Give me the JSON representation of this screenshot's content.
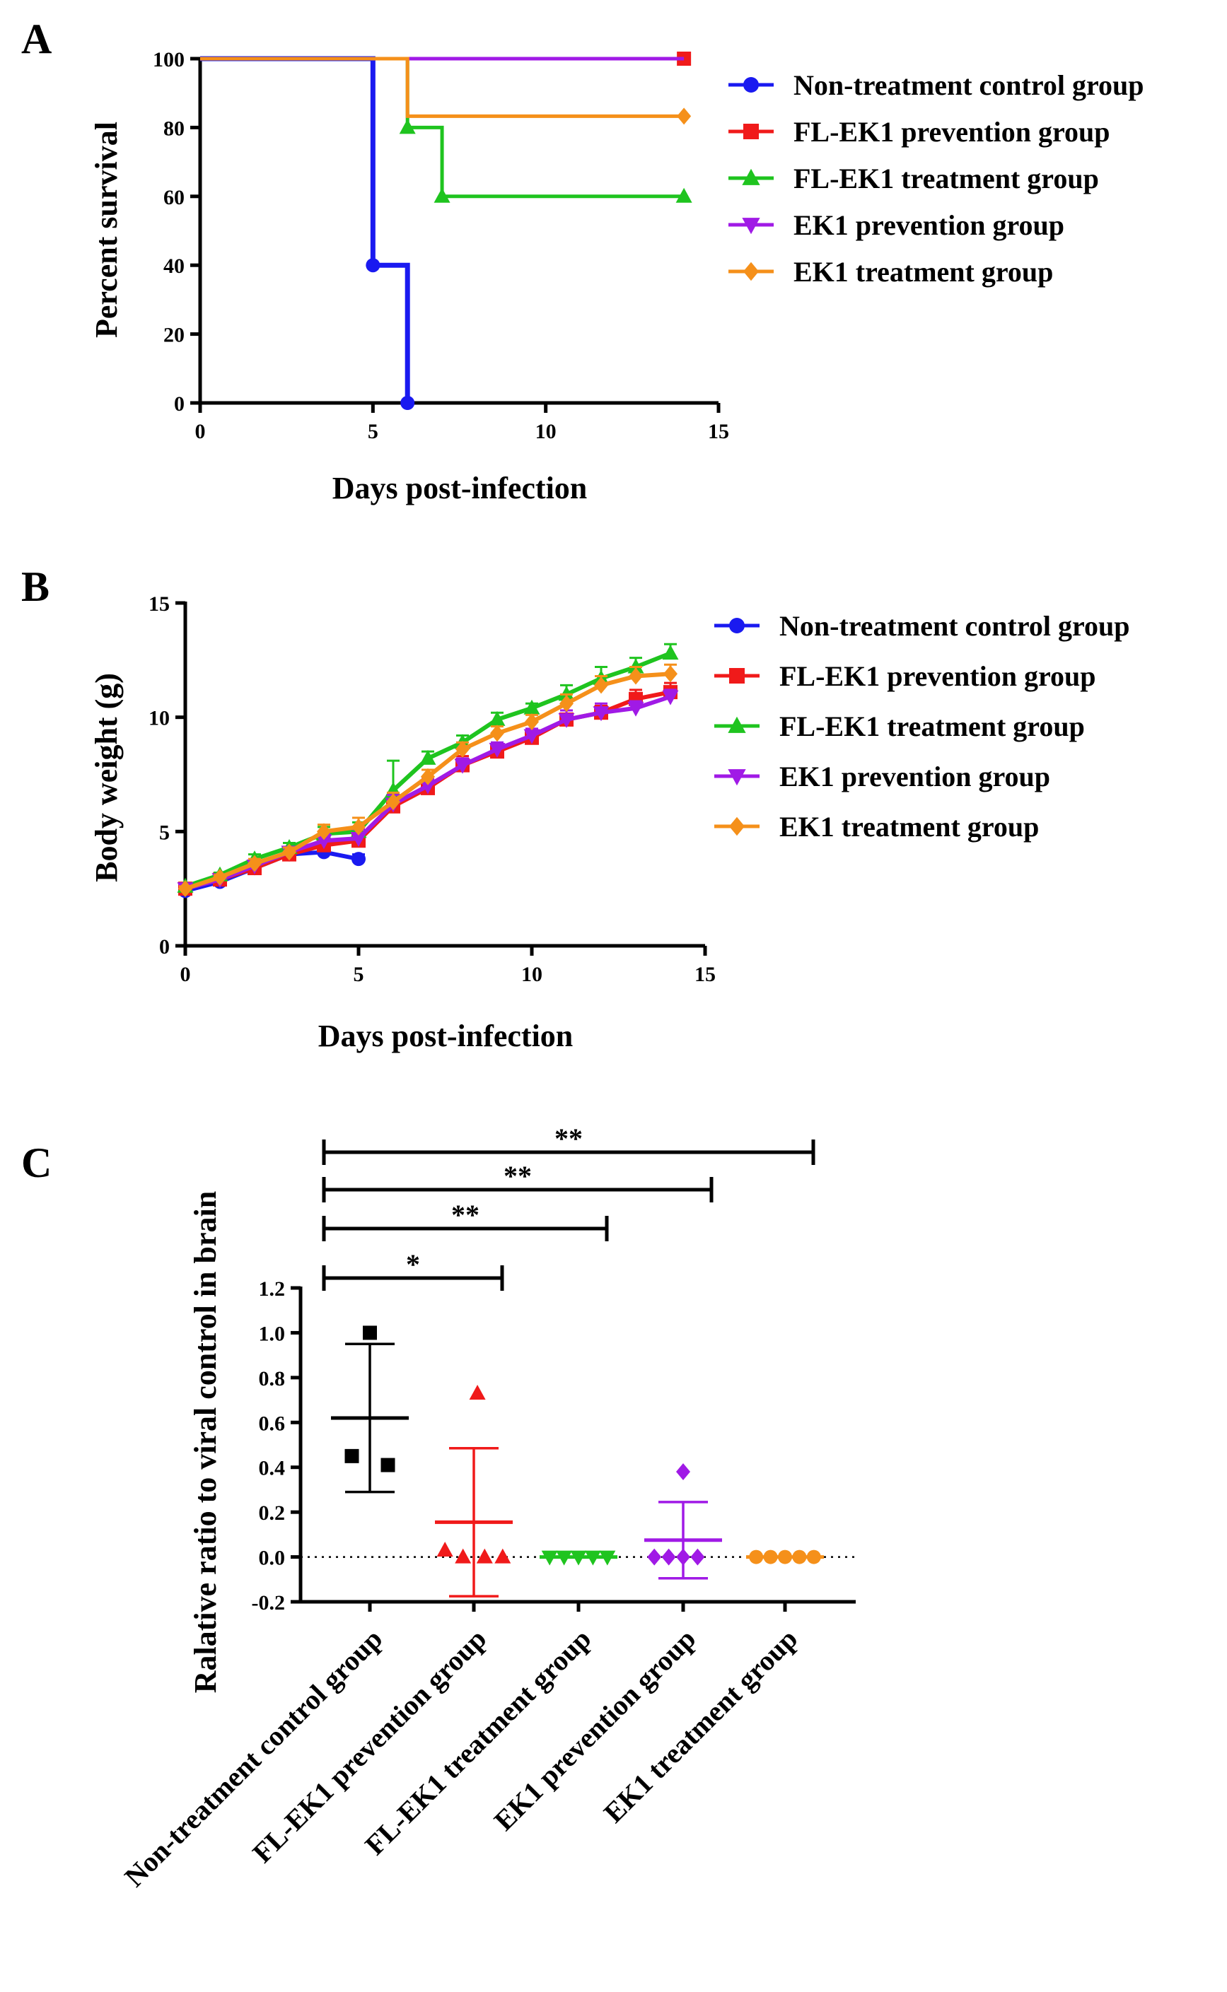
{
  "chart_data": [
    {
      "panel": "A",
      "type": "line",
      "step": true,
      "xlabel": "Days post-infection",
      "ylabel": "Percent survival",
      "xlim": [
        0,
        15
      ],
      "ylim": [
        0,
        100
      ],
      "xticks": [
        0,
        5,
        10,
        15
      ],
      "yticks": [
        0,
        20,
        40,
        60,
        80,
        100
      ],
      "legend_position": "right",
      "series": [
        {
          "name": "Non-treatment control group",
          "color": "#1a1af0",
          "marker": "circle",
          "x": [
            0,
            5,
            6,
            6
          ],
          "y": [
            100,
            40,
            40,
            0
          ],
          "marker_points": [
            [
              5,
              40
            ],
            [
              6,
              0
            ]
          ]
        },
        {
          "name": "FL-EK1 prevention group",
          "color": "#f01a1a",
          "marker": "square",
          "x": [
            0,
            14
          ],
          "y": [
            100,
            100
          ],
          "marker_points": [
            [
              14,
              100
            ]
          ]
        },
        {
          "name": "FL-EK1 treatment group",
          "color": "#1fc41f",
          "marker": "triangle-up",
          "x": [
            0,
            6,
            7,
            14
          ],
          "y": [
            100,
            80,
            60,
            60
          ],
          "marker_points": [
            [
              6,
              80
            ],
            [
              7,
              60
            ],
            [
              14,
              60
            ]
          ]
        },
        {
          "name": "EK1 prevention group",
          "color": "#a01ae6",
          "marker": "triangle-down",
          "x": [
            0,
            14
          ],
          "y": [
            100,
            100
          ],
          "marker_points": []
        },
        {
          "name": "EK1 treatment group",
          "color": "#f5901a",
          "marker": "diamond",
          "x": [
            0,
            6,
            14
          ],
          "y": [
            100,
            83.3,
            83.3
          ],
          "marker_points": [
            [
              14,
              83.3
            ]
          ]
        }
      ]
    },
    {
      "panel": "B",
      "type": "line",
      "xlabel": "Days post-infection",
      "ylabel": "Body weight (g)",
      "xlim": [
        0,
        15
      ],
      "ylim": [
        0,
        15
      ],
      "xticks": [
        0,
        5,
        10,
        15
      ],
      "yticks": [
        0,
        5,
        10,
        15
      ],
      "legend_position": "right",
      "series": [
        {
          "name": "Non-treatment control group",
          "color": "#1a1af0",
          "marker": "circle",
          "x": [
            0,
            1,
            2,
            3,
            4,
            5
          ],
          "y": [
            2.4,
            2.8,
            3.4,
            4.0,
            4.1,
            3.8
          ],
          "err": [
            0.1,
            0.2,
            0.2,
            0.2,
            0.3,
            0.2
          ]
        },
        {
          "name": "FL-EK1 prevention group",
          "color": "#f01a1a",
          "marker": "square",
          "x": [
            0,
            1,
            2,
            3,
            4,
            5,
            6,
            7,
            8,
            9,
            10,
            11,
            12,
            13,
            14
          ],
          "y": [
            2.5,
            2.9,
            3.4,
            4.0,
            4.4,
            4.6,
            6.1,
            6.9,
            7.9,
            8.5,
            9.1,
            9.9,
            10.2,
            10.8,
            11.1
          ],
          "err": [
            0.1,
            0.1,
            0.2,
            0.2,
            0.3,
            0.4,
            0.4,
            0.3,
            0.4,
            0.3,
            0.3,
            0.4,
            0.3,
            0.4,
            0.4
          ]
        },
        {
          "name": "FL-EK1 treatment group",
          "color": "#1fc41f",
          "marker": "triangle-up",
          "x": [
            0,
            1,
            2,
            3,
            4,
            5,
            6,
            7,
            8,
            9,
            10,
            11,
            12,
            13,
            14
          ],
          "y": [
            2.6,
            3.1,
            3.8,
            4.3,
            4.9,
            5.0,
            6.8,
            8.2,
            8.9,
            9.9,
            10.4,
            11.0,
            11.7,
            12.2,
            12.8
          ],
          "err": [
            0.1,
            0.1,
            0.2,
            0.2,
            0.3,
            0.4,
            1.3,
            0.3,
            0.3,
            0.3,
            0.2,
            0.4,
            0.5,
            0.4,
            0.4
          ]
        },
        {
          "name": "EK1 prevention group",
          "color": "#a01ae6",
          "marker": "triangle-down",
          "x": [
            0,
            1,
            2,
            3,
            4,
            5,
            6,
            7,
            8,
            9,
            10,
            11,
            12,
            13,
            14
          ],
          "y": [
            2.5,
            2.9,
            3.5,
            4.1,
            4.6,
            4.7,
            6.2,
            7.0,
            7.9,
            8.6,
            9.2,
            9.9,
            10.2,
            10.4,
            10.9
          ],
          "err": [
            0.1,
            0.1,
            0.2,
            0.2,
            0.3,
            0.4,
            0.4,
            0.3,
            0.3,
            0.3,
            0.3,
            0.4,
            0.4,
            0.3,
            0.3
          ]
        },
        {
          "name": "EK1 treatment group",
          "color": "#f5901a",
          "marker": "diamond",
          "x": [
            0,
            1,
            2,
            3,
            4,
            5,
            6,
            7,
            8,
            9,
            10,
            11,
            12,
            13,
            14
          ],
          "y": [
            2.5,
            3.0,
            3.6,
            4.1,
            5.0,
            5.2,
            6.3,
            7.4,
            8.6,
            9.3,
            9.8,
            10.6,
            11.4,
            11.8,
            11.9
          ],
          "err": [
            0.1,
            0.1,
            0.2,
            0.2,
            0.3,
            0.4,
            0.4,
            0.3,
            0.3,
            0.3,
            0.3,
            0.4,
            0.4,
            0.4,
            0.4
          ]
        }
      ]
    },
    {
      "panel": "C",
      "type": "scatter",
      "ylabel": "Ralative ratio to viral control in brain",
      "ylim": [
        -0.2,
        1.2
      ],
      "yticks": [
        -0.2,
        0.0,
        0.2,
        0.4,
        0.6,
        0.8,
        1.0,
        1.2
      ],
      "yticklabels": [
        "-0.2",
        "0.0",
        "0.2",
        "0.4",
        "0.6",
        "0.8",
        "1.0",
        "1.2"
      ],
      "baseline": 0.0,
      "categories": [
        "Non-treatment control group",
        "FL-EK1 prevention group",
        "FL-EK1 treatment group",
        "EK1 prevention group",
        "EK1 treatment group"
      ],
      "groups": [
        {
          "color": "#000000",
          "marker": "square",
          "mean": 0.62,
          "sd": 0.33,
          "points": [
            [
              0.0,
              1.0
            ],
            [
              -0.25,
              0.45
            ],
            [
              0.25,
              0.41
            ]
          ]
        },
        {
          "color": "#f01a1a",
          "marker": "triangle-up",
          "mean": 0.155,
          "sd": 0.33,
          "points": [
            [
              -0.4,
              0.03
            ],
            [
              -0.15,
              0.0
            ],
            [
              0.05,
              0.73
            ],
            [
              0.15,
              0.0
            ],
            [
              0.4,
              0.0
            ]
          ]
        },
        {
          "color": "#1fc41f",
          "marker": "triangle-down",
          "mean": 0.0,
          "sd": 0.0,
          "points": [
            [
              -0.4,
              0.0
            ],
            [
              -0.2,
              0.0
            ],
            [
              0.0,
              0.0
            ],
            [
              0.2,
              0.0
            ],
            [
              0.4,
              0.0
            ]
          ]
        },
        {
          "color": "#a01ae6",
          "marker": "diamond",
          "mean": 0.075,
          "sd": 0.17,
          "points": [
            [
              -0.4,
              0.0
            ],
            [
              -0.2,
              0.0
            ],
            [
              0.0,
              0.0
            ],
            [
              0.0,
              0.38
            ],
            [
              0.2,
              0.0
            ]
          ]
        },
        {
          "color": "#f5901a",
          "marker": "circle",
          "mean": 0.0,
          "sd": 0.0,
          "points": [
            [
              -0.4,
              0.0
            ],
            [
              -0.2,
              0.0
            ],
            [
              0.0,
              0.0
            ],
            [
              0.2,
              0.0
            ],
            [
              0.4,
              0.0
            ]
          ]
        }
      ],
      "significance": [
        {
          "from": 0,
          "to": 1,
          "label": "*"
        },
        {
          "from": 0,
          "to": 2,
          "label": "**"
        },
        {
          "from": 0,
          "to": 3,
          "label": "**"
        },
        {
          "from": 0,
          "to": 4,
          "label": "**"
        }
      ]
    }
  ]
}
